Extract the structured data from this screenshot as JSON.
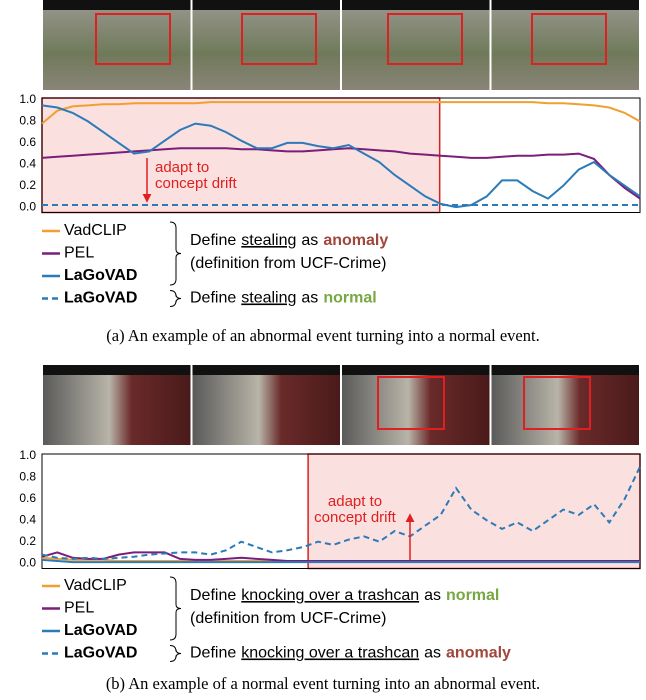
{
  "chart_data": [
    {
      "type": "line",
      "ylim": [
        -0.05,
        1.0
      ],
      "yticks": [
        {
          "value": 0,
          "label": "0.0"
        },
        0.2,
        0.4,
        0.6,
        0.8,
        {
          "value": 1,
          "label": "1.0"
        }
      ],
      "series": [
        {
          "name": "VadCLIP",
          "color": "#f0a030",
          "dashed": false,
          "bold": false,
          "values": [
            0.78,
            0.9,
            0.94,
            0.95,
            0.96,
            0.96,
            0.97,
            0.97,
            0.97,
            0.97,
            0.97,
            0.98,
            0.98,
            0.98,
            0.98,
            0.98,
            0.98,
            0.98,
            0.98,
            0.98,
            0.98,
            0.98,
            0.98,
            0.98,
            0.98,
            0.98,
            0.98,
            0.98,
            0.98,
            0.98,
            0.98,
            0.98,
            0.98,
            0.97,
            0.97,
            0.96,
            0.95,
            0.93,
            0.88,
            0.8
          ]
        },
        {
          "name": "PEL",
          "color": "#7b1e7a",
          "dashed": false,
          "bold": false,
          "values": [
            0.46,
            0.47,
            0.48,
            0.49,
            0.5,
            0.51,
            0.52,
            0.53,
            0.54,
            0.55,
            0.55,
            0.55,
            0.55,
            0.54,
            0.54,
            0.53,
            0.52,
            0.52,
            0.53,
            0.54,
            0.55,
            0.54,
            0.53,
            0.52,
            0.5,
            0.49,
            0.48,
            0.47,
            0.46,
            0.46,
            0.47,
            0.48,
            0.48,
            0.49,
            0.49,
            0.5,
            0.45,
            0.3,
            0.18,
            0.08
          ]
        },
        {
          "name": "LaGoVAD",
          "color": "#2b7bb9",
          "dashed": false,
          "bold": true,
          "values": [
            0.95,
            0.93,
            0.88,
            0.8,
            0.7,
            0.6,
            0.5,
            0.52,
            0.62,
            0.72,
            0.78,
            0.76,
            0.7,
            0.62,
            0.55,
            0.55,
            0.6,
            0.6,
            0.57,
            0.55,
            0.58,
            0.5,
            0.42,
            0.3,
            0.2,
            0.1,
            0.03,
            0.0,
            0.02,
            0.1,
            0.25,
            0.25,
            0.15,
            0.08,
            0.2,
            0.35,
            0.42,
            0.3,
            0.2,
            0.1
          ]
        },
        {
          "name": "LaGoVAD",
          "color": "#2b7bb9",
          "dashed": true,
          "bold": true,
          "values": [
            0.02,
            0.02,
            0.02,
            0.02,
            0.02,
            0.02,
            0.02,
            0.02,
            0.02,
            0.02,
            0.02,
            0.02,
            0.02,
            0.02,
            0.02,
            0.02,
            0.02,
            0.02,
            0.02,
            0.02,
            0.02,
            0.02,
            0.02,
            0.02,
            0.02,
            0.02,
            0.02,
            0.02,
            0.02,
            0.02,
            0.02,
            0.02,
            0.02,
            0.02,
            0.02,
            0.02,
            0.02,
            0.02,
            0.02,
            0.02
          ]
        }
      ],
      "annotation": [
        "adapt to",
        "concept drift"
      ],
      "definitions": [
        {
          "parts": [
            "Define",
            "stealing",
            "as",
            "anomaly"
          ],
          "label_color": "#a0463c",
          "note": "(definition from UCF-Crime)"
        },
        {
          "parts": [
            "Define",
            "stealing",
            "as",
            "normal"
          ],
          "label_color": "#77a843"
        }
      ],
      "caption": "(a) An example of an abnormal event turning into a normal event."
    },
    {
      "type": "line",
      "ylim": [
        -0.05,
        1.0
      ],
      "yticks": [
        {
          "value": 0,
          "label": "0.0"
        },
        0.2,
        0.4,
        0.6,
        0.8,
        {
          "value": 1,
          "label": "1.0"
        }
      ],
      "series": [
        {
          "name": "VadCLIP",
          "color": "#f0a030",
          "dashed": false,
          "bold": false,
          "values": [
            0.05,
            0.04,
            0.03,
            0.03,
            0.03,
            0.02,
            0.02,
            0.02,
            0.02,
            0.02,
            0.02,
            0.02,
            0.02,
            0.02,
            0.02,
            0.02,
            0.02,
            0.02,
            0.02,
            0.02,
            0.02,
            0.02,
            0.02,
            0.02,
            0.02,
            0.02,
            0.02,
            0.02,
            0.02,
            0.02,
            0.02,
            0.02,
            0.02,
            0.02,
            0.02,
            0.02,
            0.02,
            0.02,
            0.02,
            0.02
          ]
        },
        {
          "name": "PEL",
          "color": "#7b1e7a",
          "dashed": false,
          "bold": false,
          "values": [
            0.06,
            0.1,
            0.05,
            0.04,
            0.04,
            0.08,
            0.1,
            0.1,
            0.1,
            0.04,
            0.03,
            0.03,
            0.04,
            0.05,
            0.04,
            0.03,
            0.02,
            0.02,
            0.02,
            0.02,
            0.02,
            0.02,
            0.02,
            0.02,
            0.02,
            0.02,
            0.02,
            0.02,
            0.02,
            0.02,
            0.02,
            0.02,
            0.02,
            0.02,
            0.02,
            0.02,
            0.02,
            0.02,
            0.02,
            0.02
          ]
        },
        {
          "name": "LaGoVAD",
          "color": "#2b7bb9",
          "dashed": false,
          "bold": true,
          "values": [
            0.03,
            0.02,
            0.01,
            0.01,
            0.01,
            0.01,
            0.01,
            0.01,
            0.01,
            0.01,
            0.01,
            0.01,
            0.01,
            0.01,
            0.01,
            0.01,
            0.01,
            0.01,
            0.01,
            0.01,
            0.01,
            0.01,
            0.01,
            0.01,
            0.01,
            0.01,
            0.01,
            0.01,
            0.01,
            0.01,
            0.01,
            0.01,
            0.01,
            0.01,
            0.01,
            0.01,
            0.01,
            0.01,
            0.01,
            0.01
          ]
        },
        {
          "name": "LaGoVAD",
          "color": "#2b7bb9",
          "dashed": true,
          "bold": true,
          "values": [
            0.08,
            0.05,
            0.04,
            0.05,
            0.04,
            0.05,
            0.06,
            0.08,
            0.09,
            0.1,
            0.1,
            0.08,
            0.12,
            0.2,
            0.15,
            0.1,
            0.12,
            0.15,
            0.2,
            0.17,
            0.22,
            0.25,
            0.2,
            0.3,
            0.25,
            0.35,
            0.45,
            0.7,
            0.5,
            0.4,
            0.32,
            0.38,
            0.3,
            0.4,
            0.5,
            0.45,
            0.55,
            0.38,
            0.6,
            0.9
          ]
        }
      ],
      "annotation": [
        "adapt to",
        "concept drift"
      ],
      "definitions": [
        {
          "parts": [
            "Define",
            "knocking over a trashcan",
            "as",
            "normal"
          ],
          "label_color": "#77a843",
          "note": "(definition from UCF-Crime)"
        },
        {
          "parts": [
            "Define",
            "knocking over a trashcan",
            "as",
            "anomaly"
          ],
          "label_color": "#a0463c"
        }
      ],
      "caption": "(b) An example of a normal event turning into an abnormal event."
    }
  ]
}
